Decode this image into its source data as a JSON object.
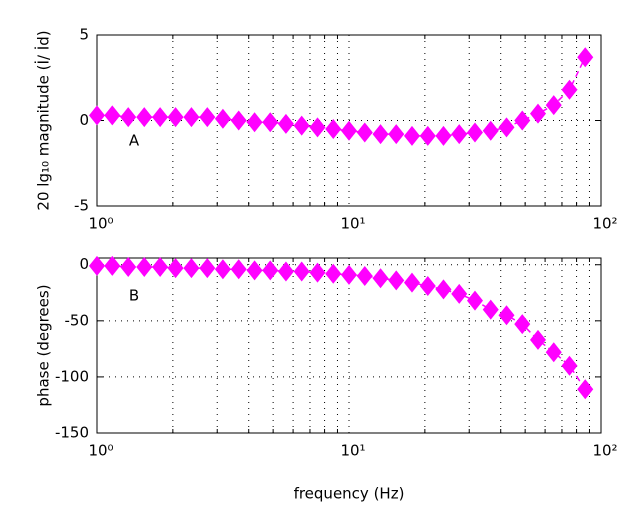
{
  "chart_data": [
    {
      "type": "line",
      "ylabel": "20 lg₁₀ magnitude (İ/ İd)",
      "annotation": "A",
      "x": [
        1,
        1.15,
        1.33,
        1.54,
        1.78,
        2.05,
        2.37,
        2.74,
        3.16,
        3.65,
        4.22,
        4.87,
        5.62,
        6.49,
        7.5,
        8.66,
        10,
        11.55,
        13.34,
        15.4,
        17.78,
        20.54,
        23.71,
        27.38,
        31.62,
        36.52,
        42.17,
        48.7,
        56.23,
        64.94,
        74.99,
        86.6
      ],
      "series": [
        {
          "color": "#ff00ff",
          "values": [
            0.3,
            0.3,
            0.2,
            0.2,
            0.2,
            0.2,
            0.2,
            0.2,
            0.1,
            0,
            -0.1,
            -0.1,
            -0.2,
            -0.3,
            -0.4,
            -0.5,
            -0.6,
            -0.7,
            -0.8,
            -0.8,
            -0.9,
            -0.9,
            -0.9,
            -0.8,
            -0.7,
            -0.6,
            -0.4,
            0,
            0.4,
            0.9,
            1.8,
            3.7
          ]
        }
      ],
      "xscale": "log",
      "xlim": [
        1,
        100
      ],
      "xticks": [
        {
          "value": 1,
          "label": "10⁰"
        },
        {
          "value": 10,
          "label": "10¹"
        },
        {
          "value": 100,
          "label": "10²"
        }
      ],
      "xminorticks": [
        2,
        3,
        4,
        5,
        6,
        7,
        8,
        9,
        20,
        30,
        40,
        50,
        60,
        70,
        80,
        90
      ],
      "ylim": [
        -5,
        5
      ],
      "yticks": [
        -5,
        0,
        5
      ],
      "grid": true
    },
    {
      "type": "line",
      "ylabel": "phase (degrees)",
      "xlabel": "frequency (Hz)",
      "annotation": "B",
      "x": [
        1,
        1.15,
        1.33,
        1.54,
        1.78,
        2.05,
        2.37,
        2.74,
        3.16,
        3.65,
        4.22,
        4.87,
        5.62,
        6.49,
        7.5,
        8.66,
        10,
        11.55,
        13.34,
        15.4,
        17.78,
        20.54,
        23.71,
        27.38,
        31.62,
        36.52,
        42.17,
        48.7,
        56.23,
        64.94,
        74.99,
        86.6
      ],
      "series": [
        {
          "color": "#ff00ff",
          "values": [
            -1,
            -1,
            -2,
            -2,
            -2,
            -3,
            -3,
            -3,
            -4,
            -4,
            -5,
            -5,
            -6,
            -6,
            -7,
            -8,
            -9,
            -10,
            -12,
            -14,
            -16,
            -19,
            -22,
            -26,
            -32,
            -40,
            -45,
            -53,
            -67,
            -78,
            -90,
            -111
          ]
        }
      ],
      "xscale": "log",
      "xlim": [
        1,
        100
      ],
      "xticks": [
        {
          "value": 1,
          "label": "10⁰"
        },
        {
          "value": 10,
          "label": "10¹"
        },
        {
          "value": 100,
          "label": "10²"
        }
      ],
      "xminorticks": [
        2,
        3,
        4,
        5,
        6,
        7,
        8,
        9,
        20,
        30,
        40,
        50,
        60,
        70,
        80,
        90
      ],
      "ylim": [
        -150,
        6
      ],
      "yticks": [
        -150,
        -100,
        -50,
        0
      ],
      "grid": true
    }
  ]
}
